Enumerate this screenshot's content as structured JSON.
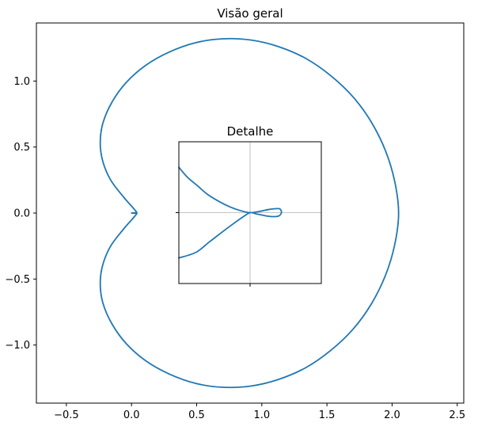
{
  "chart_data": [
    {
      "type": "line",
      "title": "Visão geral",
      "xlabel": "",
      "ylabel": "",
      "xlim": [
        -0.73,
        2.55
      ],
      "ylim": [
        -1.44,
        1.44
      ],
      "x_ticks": [
        -0.5,
        0.0,
        0.5,
        1.0,
        1.5,
        2.0,
        2.5
      ],
      "x_tick_labels": [
        "−0.5",
        "0.0",
        "0.5",
        "1.0",
        "1.5",
        "2.0",
        "2.5"
      ],
      "y_ticks": [
        -1.0,
        -0.5,
        0.0,
        0.5,
        1.0
      ],
      "y_tick_labels": [
        "−1.0",
        "−0.5",
        "0.0",
        "0.5",
        "1.0"
      ],
      "grid": false,
      "series": [
        {
          "color": "#1f77b4",
          "x": [
            0.0,
            0.04,
            0.02,
            -0.06,
            -0.16,
            -0.22,
            -0.24,
            -0.22,
            -0.15,
            -0.04,
            0.11,
            0.29,
            0.49,
            0.7,
            0.92,
            1.13,
            1.34,
            1.53,
            1.7,
            1.84,
            1.95,
            2.02,
            2.05,
            2.02,
            1.95,
            1.84,
            1.7,
            1.53,
            1.34,
            1.13,
            0.92,
            0.7,
            0.49,
            0.29,
            0.11,
            -0.04,
            -0.15,
            -0.22,
            -0.24,
            -0.22,
            -0.16,
            -0.06,
            0.02,
            0.04,
            0.0
          ],
          "y": [
            0.0,
            0.0,
            0.03,
            0.12,
            0.25,
            0.39,
            0.53,
            0.68,
            0.84,
            0.99,
            1.12,
            1.22,
            1.29,
            1.32,
            1.31,
            1.26,
            1.17,
            1.04,
            0.88,
            0.69,
            0.47,
            0.24,
            0.0,
            -0.24,
            -0.47,
            -0.69,
            -0.88,
            -1.04,
            -1.17,
            -1.26,
            -1.31,
            -1.32,
            -1.29,
            -1.22,
            -1.12,
            -0.99,
            -0.84,
            -0.68,
            -0.53,
            -0.39,
            -0.25,
            -0.12,
            -0.03,
            0.0,
            0.0
          ]
        }
      ]
    },
    {
      "type": "line",
      "title": "Detalhe",
      "xlabel": "",
      "ylabel": "",
      "xlim": [
        -0.05,
        0.05
      ],
      "ylim": [
        -0.05,
        0.05
      ],
      "x_ticks": [
        0.0
      ],
      "x_tick_labels": [],
      "y_ticks": [
        0.0
      ],
      "y_tick_labels": [],
      "grid": true,
      "series": [
        {
          "color": "#1f77b4",
          "x": [
            -0.05,
            -0.044,
            -0.037,
            -0.03,
            -0.022,
            -0.014,
            -0.007,
            0.0,
            0.007,
            0.013,
            0.018,
            0.021,
            0.022,
            0.02,
            0.016,
            0.012,
            0.008,
            0.004,
            0.0,
            -0.005,
            -0.012,
            -0.02,
            -0.029,
            -0.038,
            -0.05
          ],
          "y": [
            0.032,
            0.025,
            0.019,
            0.013,
            0.008,
            0.004,
            0.0015,
            0.0,
            0.001,
            0.0022,
            0.0028,
            0.0026,
            0.0,
            -0.0024,
            -0.0028,
            -0.0024,
            -0.0016,
            -0.0008,
            0.0,
            -0.003,
            -0.008,
            -0.014,
            -0.021,
            -0.028,
            -0.032
          ]
        }
      ]
    }
  ]
}
